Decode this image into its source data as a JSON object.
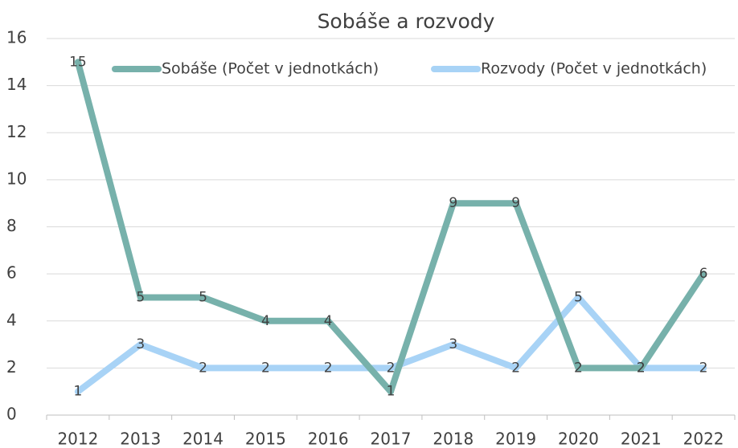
{
  "chart_data": {
    "type": "line",
    "title": "Sobáše a rozvody",
    "categories": [
      "2012",
      "2013",
      "2014",
      "2015",
      "2016",
      "2017",
      "2018",
      "2019",
      "2020",
      "2021",
      "2022"
    ],
    "series": [
      {
        "name": "Sobáše (Počet v jednotkách)",
        "color": "#77b1ab",
        "values": [
          15,
          5,
          5,
          4,
          4,
          1,
          9,
          9,
          2,
          2,
          6
        ]
      },
      {
        "name": "Rozvody (Počet v jednotkách)",
        "color": "#a8d3f6",
        "values": [
          1,
          3,
          2,
          2,
          2,
          2,
          3,
          2,
          5,
          2,
          2
        ]
      }
    ],
    "ylim": [
      0,
      16
    ],
    "yticks": [
      0,
      2,
      4,
      6,
      8,
      10,
      12,
      14,
      16
    ],
    "grid": true,
    "legend": "top"
  }
}
